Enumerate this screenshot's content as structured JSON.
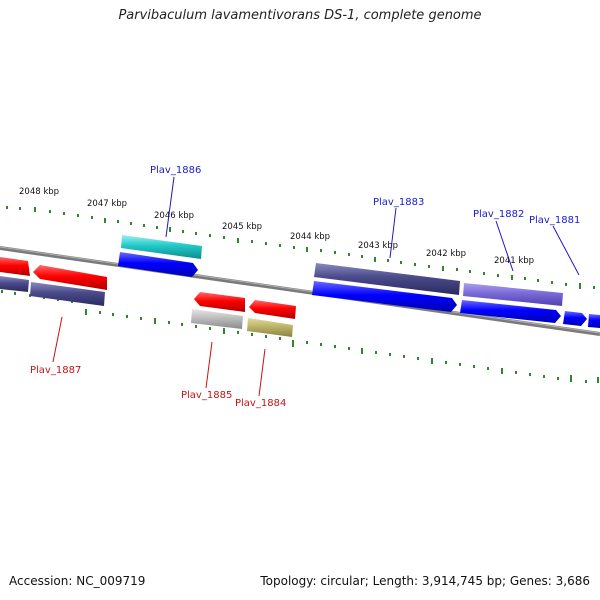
{
  "title": "Parvibaculum lavamentivorans DS-1, complete genome",
  "footer": {
    "accession": "Accession: NC_009719",
    "summary": "Topology: circular; Length: 3,914,745 bp; Genes: 3,686"
  },
  "scale_labels": [
    "2048 kbp",
    "2047 kbp",
    "2046 kbp",
    "2045 kbp",
    "2044 kbp",
    "2043 kbp",
    "2042 kbp",
    "2041 kbp"
  ],
  "gene_labels": {
    "plav_1886": "Plav_1886",
    "plav_1883": "Plav_1883",
    "plav_1882": "Plav_1882",
    "plav_1881": "Plav_1881",
    "plav_1887": "Plav_1887",
    "plav_1885": "Plav_1885",
    "plav_1884": "Plav_1884"
  },
  "colors": {
    "forward_label": "#1a1acc",
    "reverse_label": "#cc1111",
    "tick": "#2a8a2a",
    "backbone": "#888888"
  }
}
